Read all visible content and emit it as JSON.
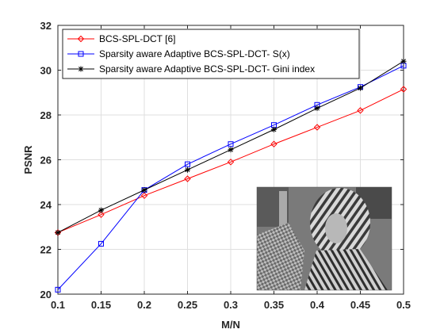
{
  "chart_data": {
    "type": "line",
    "xlabel": "M/N",
    "ylabel": "PSNR",
    "xlim": [
      0.1,
      0.5
    ],
    "ylim": [
      20,
      32
    ],
    "x": [
      0.1,
      0.15,
      0.2,
      0.25,
      0.3,
      0.35,
      0.4,
      0.45,
      0.5
    ],
    "xticks": [
      "0.1",
      "0.15",
      "0.2",
      "0.25",
      "0.3",
      "0.35",
      "0.4",
      "0.45",
      "0.5"
    ],
    "yticks": [
      "20",
      "22",
      "24",
      "26",
      "28",
      "30",
      "32"
    ],
    "grid": true,
    "legend_position": "top-left",
    "series": [
      {
        "name": "BCS-SPL-DCT [6]",
        "color": "#ff0000",
        "marker": "diamond",
        "values": [
          22.75,
          23.55,
          24.4,
          25.15,
          25.9,
          26.7,
          27.45,
          28.2,
          29.15
        ]
      },
      {
        "name": "Sparsity aware Adaptive BCS-SPL-DCT- S(x)",
        "color": "#0000ff",
        "marker": "square",
        "values": [
          20.2,
          22.25,
          24.65,
          25.8,
          26.7,
          27.55,
          28.45,
          29.25,
          30.2
        ]
      },
      {
        "name": "Sparsity aware Adaptive BCS-SPL-DCT- Gini index",
        "color": "#000000",
        "marker": "asterisk",
        "values": [
          22.75,
          23.75,
          24.65,
          25.55,
          26.45,
          27.35,
          28.3,
          29.2,
          30.4
        ]
      }
    ],
    "inset_image": "grayscale photo of a woman wearing a striped headscarf (test image)"
  }
}
